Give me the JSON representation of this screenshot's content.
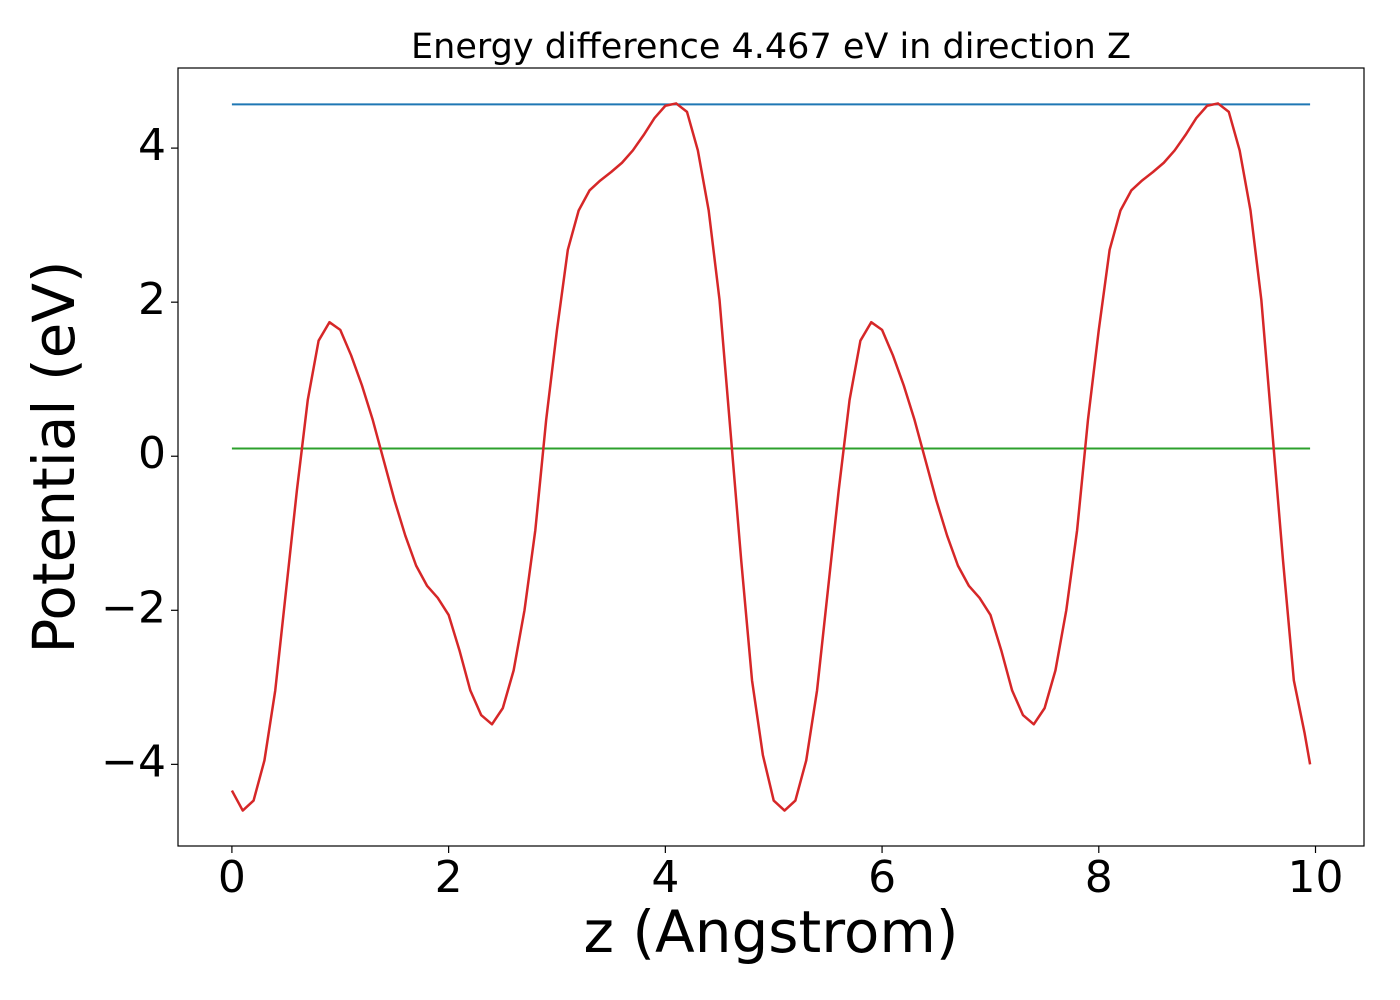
{
  "chart_data": {
    "type": "line",
    "title": "Energy difference 4.467 eV in direction Z",
    "x_label": "z (Angstrom)",
    "y_label": "Potential (eV)",
    "x": [
      0,
      0.1,
      0.2,
      0.3,
      0.4,
      0.5,
      0.6,
      0.7,
      0.8,
      0.9,
      1.0,
      1.1,
      1.2,
      1.3,
      1.4,
      1.5,
      1.6,
      1.7,
      1.8,
      1.9,
      2.0,
      2.1,
      2.2,
      2.3,
      2.4,
      2.5,
      2.6,
      2.7,
      2.8,
      2.9,
      3.0,
      3.1,
      3.2,
      3.3,
      3.4,
      3.5,
      3.6,
      3.7,
      3.8,
      3.9,
      4.0,
      4.1,
      4.2,
      4.3,
      4.4,
      4.5,
      4.6,
      4.7,
      4.8,
      4.9,
      5.0,
      5.1,
      5.2,
      5.3,
      5.4,
      5.5,
      5.6,
      5.7,
      5.8,
      5.9,
      6.0,
      6.1,
      6.2,
      6.3,
      6.4,
      6.5,
      6.6,
      6.7,
      6.8,
      6.9,
      7.0,
      7.1,
      7.2,
      7.3,
      7.4,
      7.5,
      7.6,
      7.7,
      7.8,
      7.9,
      8.0,
      8.1,
      8.2,
      8.3,
      8.4,
      8.5,
      8.6,
      8.7,
      8.8,
      8.9,
      9.0,
      9.1,
      9.2,
      9.3,
      9.4,
      9.5,
      9.6,
      9.7,
      9.8,
      9.9,
      9.95
    ],
    "series": [
      {
        "color": "#d62728",
        "values": [
          -4.34,
          -4.6,
          -4.47,
          -3.95,
          -3.04,
          -1.74,
          -0.44,
          0.73,
          1.5,
          1.74,
          1.64,
          1.31,
          0.92,
          0.47,
          -0.05,
          -0.57,
          -1.03,
          -1.42,
          -1.68,
          -1.84,
          -2.06,
          -2.52,
          -3.04,
          -3.36,
          -3.48,
          -3.27,
          -2.78,
          -2.0,
          -0.96,
          0.47,
          1.64,
          2.68,
          3.19,
          3.45,
          3.58,
          3.69,
          3.81,
          3.97,
          4.17,
          4.39,
          4.55,
          4.58,
          4.47,
          3.97,
          3.19,
          2.03,
          0.34,
          -1.35,
          -2.91,
          -3.88,
          -4.47,
          -4.6,
          -4.47,
          -3.95,
          -3.04,
          -1.74,
          -0.44,
          0.73,
          1.5,
          1.74,
          1.64,
          1.31,
          0.92,
          0.47,
          -0.05,
          -0.57,
          -1.03,
          -1.42,
          -1.68,
          -1.84,
          -2.06,
          -2.52,
          -3.04,
          -3.36,
          -3.48,
          -3.27,
          -2.78,
          -2.0,
          -0.96,
          0.47,
          1.64,
          2.68,
          3.19,
          3.45,
          3.58,
          3.69,
          3.81,
          3.97,
          4.17,
          4.39,
          4.55,
          4.58,
          4.47,
          3.97,
          3.19,
          2.03,
          0.34,
          -1.35,
          -2.91,
          -3.6,
          -4.0
        ]
      }
    ],
    "hlines": [
      {
        "y": 4.567,
        "color": "#1f77b4"
      },
      {
        "y": 0.1,
        "color": "#2ca02c"
      }
    ],
    "xlim": [
      -0.4975,
      10.4475
    ],
    "ylim": [
      -5.06,
      5.04
    ],
    "xticks": [
      0,
      2,
      4,
      6,
      8,
      10
    ],
    "yticks": [
      {
        "value": -4,
        "label": "−4"
      },
      {
        "value": -2,
        "label": "−2"
      },
      0,
      2,
      4
    ]
  }
}
